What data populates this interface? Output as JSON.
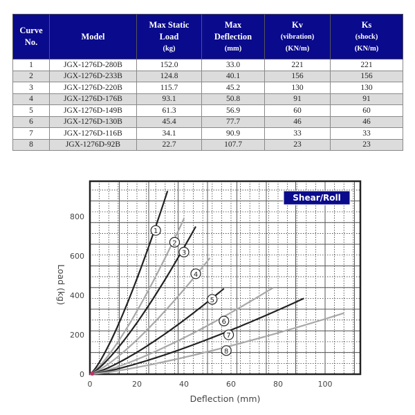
{
  "table": {
    "headers": [
      {
        "lines": [
          "Curve",
          "No."
        ]
      },
      {
        "lines": [
          "Model"
        ]
      },
      {
        "lines": [
          "Max Static",
          "Load",
          "(kg)"
        ]
      },
      {
        "lines": [
          "Max",
          "Deflection",
          "(mm)"
        ]
      },
      {
        "lines": [
          "Kv",
          "(vibration)",
          "(KN/m)"
        ]
      },
      {
        "lines": [
          "Ks",
          "(shock)",
          "(KN/m)"
        ]
      }
    ],
    "rows": [
      [
        "1",
        "JGX-1276D-280B",
        "152.0",
        "33.0",
        "221",
        "221"
      ],
      [
        "2",
        "JGX-1276D-233B",
        "124.8",
        "40.1",
        "156",
        "156"
      ],
      [
        "3",
        "JGX-1276D-220B",
        "115.7",
        "45.2",
        "130",
        "130"
      ],
      [
        "4",
        "JGX-1276D-176B",
        "93.1",
        "50.8",
        "91",
        "91"
      ],
      [
        "5",
        "JGX-1276D-149B",
        "61.3",
        "56.9",
        "60",
        "60"
      ],
      [
        "6",
        "JGX-1276D-130B",
        "45.4",
        "77.7",
        "46",
        "46"
      ],
      [
        "7",
        "JGX-1276D-116B",
        "34.1",
        "90.9",
        "33",
        "33"
      ],
      [
        "8",
        "JGX-1276D-92B",
        "22.7",
        "107.7",
        "23",
        "23"
      ]
    ]
  },
  "chart_data": {
    "type": "line",
    "title": "Shear/Roll",
    "xlabel": "Deflection (mm)",
    "ylabel": "Load (kg)",
    "xlim": [
      0,
      115
    ],
    "ylim": [
      0,
      980
    ],
    "xticks": [
      0,
      20,
      40,
      60,
      80,
      100
    ],
    "yticks": [
      0,
      200,
      400,
      600,
      800
    ],
    "grid": true,
    "legend": "top-right",
    "series": [
      {
        "name": "1",
        "color": "#222222",
        "end": [
          33,
          930
        ],
        "label_at": [
          28,
          730
        ]
      },
      {
        "name": "2",
        "color": "#a8a8a8",
        "end": [
          40,
          790
        ],
        "label_at": [
          36,
          670
        ]
      },
      {
        "name": "3",
        "color": "#222222",
        "end": [
          45,
          750
        ],
        "label_at": [
          40,
          620
        ]
      },
      {
        "name": "4",
        "color": "#a8a8a8",
        "end": [
          51,
          590
        ],
        "label_at": [
          45,
          510
        ]
      },
      {
        "name": "5",
        "color": "#222222",
        "end": [
          57,
          435
        ],
        "label_at": [
          52,
          380
        ]
      },
      {
        "name": "6",
        "color": "#a8a8a8",
        "end": [
          78,
          440
        ],
        "label_at": [
          57,
          270
        ]
      },
      {
        "name": "7",
        "color": "#222222",
        "end": [
          91,
          385
        ],
        "label_at": [
          59,
          200
        ]
      },
      {
        "name": "8",
        "color": "#a8a8a8",
        "end": [
          108,
          310
        ],
        "label_at": [
          58,
          120
        ]
      }
    ]
  }
}
